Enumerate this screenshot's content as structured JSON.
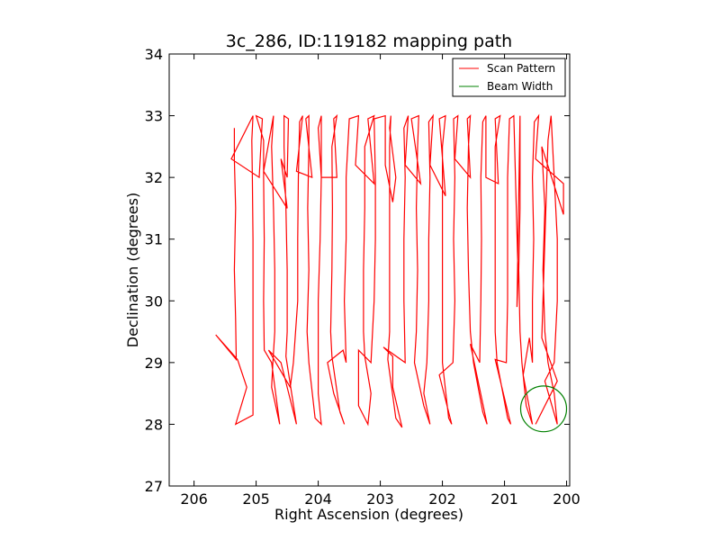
{
  "chart_data": {
    "type": "line",
    "title": "3c_286, ID:119182 mapping path",
    "xlabel": "Right Ascension (degrees)",
    "ylabel": "Declination (degrees)",
    "xlim": [
      206.4,
      199.95
    ],
    "ylim": [
      27,
      34
    ],
    "x_reversed": true,
    "xticks": [
      206,
      205,
      204,
      203,
      202,
      201,
      200
    ],
    "xtick_labels": [
      "206",
      "205",
      "204",
      "203",
      "202",
      "201",
      "200"
    ],
    "yticks": [
      27,
      28,
      29,
      30,
      31,
      32,
      33,
      34
    ],
    "ytick_labels": [
      "27",
      "28",
      "29",
      "30",
      "31",
      "32",
      "33",
      "34"
    ],
    "grid": false,
    "legend_position": "top-right",
    "series": [
      {
        "name": "Scan Pattern",
        "color": "#ff0000",
        "points": [
          [
            205.35,
            32.8
          ],
          [
            205.35,
            32.3
          ],
          [
            205.33,
            31.5
          ],
          [
            205.35,
            30.5
          ],
          [
            205.33,
            29.7
          ],
          [
            205.32,
            29.05
          ],
          [
            205.65,
            29.45
          ],
          [
            205.3,
            29.05
          ],
          [
            205.15,
            28.6
          ],
          [
            205.33,
            28.0
          ],
          [
            205.05,
            28.15
          ],
          [
            205.05,
            29.0
          ],
          [
            205.05,
            30.0
          ],
          [
            205.05,
            31.0
          ],
          [
            205.06,
            32.0
          ],
          [
            205.07,
            32.6
          ],
          [
            205.05,
            33.0
          ],
          [
            205.4,
            32.3
          ],
          [
            204.95,
            32.0
          ],
          [
            204.9,
            32.95
          ],
          [
            205.0,
            33.0
          ],
          [
            204.88,
            32.6
          ],
          [
            204.88,
            32.0
          ],
          [
            204.87,
            31.0
          ],
          [
            204.88,
            30.0
          ],
          [
            204.87,
            29.2
          ],
          [
            204.75,
            29.0
          ],
          [
            204.62,
            28.0
          ],
          [
            204.75,
            28.6
          ],
          [
            204.73,
            29.0
          ],
          [
            204.7,
            29.5
          ],
          [
            204.7,
            30.5
          ],
          [
            204.72,
            31.5
          ],
          [
            204.75,
            32.5
          ],
          [
            204.72,
            33.0
          ],
          [
            204.88,
            32.1
          ],
          [
            204.5,
            31.5
          ],
          [
            204.6,
            32.3
          ],
          [
            204.5,
            32.0
          ],
          [
            204.48,
            32.95
          ],
          [
            204.55,
            33.0
          ],
          [
            204.55,
            32.5
          ],
          [
            204.52,
            31.5
          ],
          [
            204.5,
            30.5
          ],
          [
            204.5,
            29.5
          ],
          [
            204.52,
            29.1
          ],
          [
            204.35,
            28.0
          ],
          [
            204.6,
            29.0
          ],
          [
            204.8,
            29.2
          ],
          [
            204.45,
            28.6
          ],
          [
            204.4,
            29.0
          ],
          [
            204.33,
            30.0
          ],
          [
            204.33,
            31.0
          ],
          [
            204.32,
            32.0
          ],
          [
            204.3,
            32.9
          ],
          [
            204.25,
            33.0
          ],
          [
            204.35,
            32.1
          ],
          [
            204.1,
            32.0
          ],
          [
            204.2,
            32.95
          ],
          [
            204.15,
            33.0
          ],
          [
            204.15,
            32.5
          ],
          [
            204.17,
            31.5
          ],
          [
            204.15,
            30.5
          ],
          [
            204.18,
            29.5
          ],
          [
            204.15,
            29.0
          ],
          [
            204.05,
            28.1
          ],
          [
            203.95,
            28.0
          ],
          [
            204.0,
            28.5
          ],
          [
            204.0,
            29.0
          ],
          [
            204.0,
            30.0
          ],
          [
            203.97,
            31.0
          ],
          [
            203.95,
            32.0
          ],
          [
            204.0,
            32.8
          ],
          [
            203.95,
            33.0
          ],
          [
            203.95,
            32.0
          ],
          [
            203.7,
            32.0
          ],
          [
            203.75,
            32.95
          ],
          [
            203.7,
            33.0
          ],
          [
            203.78,
            32.5
          ],
          [
            203.77,
            31.5
          ],
          [
            203.78,
            30.5
          ],
          [
            203.8,
            29.5
          ],
          [
            203.78,
            29.1
          ],
          [
            203.65,
            28.2
          ],
          [
            203.58,
            28.0
          ],
          [
            203.75,
            28.5
          ],
          [
            203.85,
            29.0
          ],
          [
            203.6,
            29.2
          ],
          [
            203.55,
            29.0
          ],
          [
            203.58,
            30.0
          ],
          [
            203.55,
            31.0
          ],
          [
            203.55,
            32.0
          ],
          [
            203.5,
            32.95
          ],
          [
            203.35,
            33.0
          ],
          [
            203.4,
            32.2
          ],
          [
            203.1,
            31.9
          ],
          [
            203.2,
            32.95
          ],
          [
            203.1,
            33.0
          ],
          [
            203.25,
            32.5
          ],
          [
            203.25,
            31.5
          ],
          [
            203.27,
            30.5
          ],
          [
            203.27,
            29.5
          ],
          [
            203.25,
            29.1
          ],
          [
            203.15,
            28.5
          ],
          [
            203.2,
            28.0
          ],
          [
            203.35,
            28.3
          ],
          [
            203.35,
            29.2
          ],
          [
            203.15,
            29.0
          ],
          [
            203.1,
            30.0
          ],
          [
            203.08,
            31.0
          ],
          [
            203.08,
            32.0
          ],
          [
            203.1,
            32.95
          ],
          [
            202.92,
            33.0
          ],
          [
            202.92,
            32.2
          ],
          [
            202.8,
            31.6
          ],
          [
            202.75,
            32.0
          ],
          [
            202.85,
            32.8
          ],
          [
            202.83,
            33.0
          ],
          [
            202.85,
            32.5
          ],
          [
            202.85,
            31.5
          ],
          [
            202.85,
            30.5
          ],
          [
            202.85,
            29.5
          ],
          [
            202.88,
            29.05
          ],
          [
            202.75,
            28.1
          ],
          [
            202.65,
            27.95
          ],
          [
            202.8,
            28.6
          ],
          [
            202.8,
            29.1
          ],
          [
            202.95,
            29.25
          ],
          [
            202.6,
            29.0
          ],
          [
            202.62,
            30.0
          ],
          [
            202.62,
            31.0
          ],
          [
            202.6,
            32.0
          ],
          [
            202.62,
            32.8
          ],
          [
            202.55,
            33.0
          ],
          [
            202.6,
            32.2
          ],
          [
            202.35,
            31.9
          ],
          [
            202.5,
            32.95
          ],
          [
            202.38,
            33.0
          ],
          [
            202.4,
            32.5
          ],
          [
            202.42,
            31.5
          ],
          [
            202.4,
            30.5
          ],
          [
            202.42,
            29.5
          ],
          [
            202.45,
            29.0
          ],
          [
            202.3,
            28.3
          ],
          [
            202.2,
            28.0
          ],
          [
            202.3,
            28.5
          ],
          [
            202.25,
            29.0
          ],
          [
            202.22,
            30.0
          ],
          [
            202.22,
            31.0
          ],
          [
            202.2,
            32.0
          ],
          [
            202.22,
            32.9
          ],
          [
            202.15,
            33.0
          ],
          [
            202.2,
            32.2
          ],
          [
            201.95,
            31.7
          ],
          [
            202.05,
            32.95
          ],
          [
            201.95,
            33.0
          ],
          [
            202.0,
            32.5
          ],
          [
            202.0,
            31.5
          ],
          [
            202.0,
            30.5
          ],
          [
            202.0,
            29.5
          ],
          [
            202.0,
            29.0
          ],
          [
            201.9,
            28.1
          ],
          [
            201.85,
            28.0
          ],
          [
            202.05,
            28.8
          ],
          [
            201.83,
            29.0
          ],
          [
            201.8,
            30.0
          ],
          [
            201.82,
            31.0
          ],
          [
            201.8,
            32.0
          ],
          [
            201.82,
            32.95
          ],
          [
            201.75,
            33.0
          ],
          [
            201.8,
            32.3
          ],
          [
            201.55,
            32.0
          ],
          [
            201.6,
            32.95
          ],
          [
            201.55,
            33.0
          ],
          [
            201.58,
            32.5
          ],
          [
            201.6,
            31.5
          ],
          [
            201.58,
            30.5
          ],
          [
            201.55,
            29.5
          ],
          [
            201.5,
            29.0
          ],
          [
            201.35,
            28.2
          ],
          [
            201.28,
            28.0
          ],
          [
            201.55,
            29.3
          ],
          [
            201.4,
            29.0
          ],
          [
            201.38,
            30.0
          ],
          [
            201.37,
            31.0
          ],
          [
            201.38,
            32.0
          ],
          [
            201.35,
            32.9
          ],
          [
            201.3,
            33.0
          ],
          [
            201.3,
            32.0
          ],
          [
            201.1,
            31.9
          ],
          [
            201.15,
            32.95
          ],
          [
            201.07,
            33.0
          ],
          [
            201.15,
            32.5
          ],
          [
            201.15,
            31.5
          ],
          [
            201.15,
            30.5
          ],
          [
            201.15,
            29.5
          ],
          [
            201.12,
            29.0
          ],
          [
            200.95,
            28.1
          ],
          [
            200.9,
            28.0
          ],
          [
            201.15,
            29.05
          ],
          [
            200.97,
            29.0
          ],
          [
            200.95,
            30.0
          ],
          [
            200.95,
            31.0
          ],
          [
            200.95,
            32.0
          ],
          [
            200.92,
            32.95
          ],
          [
            200.85,
            33.0
          ],
          [
            200.78,
            30.4
          ],
          [
            200.8,
            29.9
          ],
          [
            200.75,
            33.0
          ],
          [
            200.75,
            32.5
          ],
          [
            200.75,
            31.5
          ],
          [
            200.77,
            30.5
          ],
          [
            200.75,
            29.5
          ],
          [
            200.72,
            29.0
          ],
          [
            200.65,
            28.3
          ],
          [
            200.55,
            28.0
          ],
          [
            200.7,
            28.8
          ],
          [
            200.6,
            29.4
          ],
          [
            200.55,
            29.0
          ],
          [
            200.55,
            30.0
          ],
          [
            200.53,
            31.0
          ],
          [
            200.55,
            32.0
          ],
          [
            200.52,
            32.9
          ],
          [
            200.45,
            33.0
          ],
          [
            200.5,
            32.3
          ],
          [
            200.05,
            31.9
          ],
          [
            200.05,
            31.4
          ],
          [
            200.4,
            32.5
          ],
          [
            200.35,
            31.5
          ],
          [
            200.38,
            30.5
          ],
          [
            200.35,
            29.5
          ],
          [
            200.3,
            29.0
          ],
          [
            200.2,
            28.5
          ],
          [
            200.15,
            28.0
          ],
          [
            200.35,
            28.7
          ],
          [
            200.2,
            29.0
          ],
          [
            200.15,
            30.0
          ],
          [
            200.15,
            31.0
          ],
          [
            200.2,
            32.0
          ],
          [
            200.25,
            33.0
          ],
          [
            200.3,
            32.6
          ],
          [
            200.4,
            29.4
          ],
          [
            200.15,
            28.7
          ],
          [
            200.5,
            28.0
          ]
        ]
      },
      {
        "name": "Beam Width",
        "color": "#008000",
        "center": [
          200.37,
          28.25
        ],
        "radius_deg": 0.37
      }
    ]
  }
}
